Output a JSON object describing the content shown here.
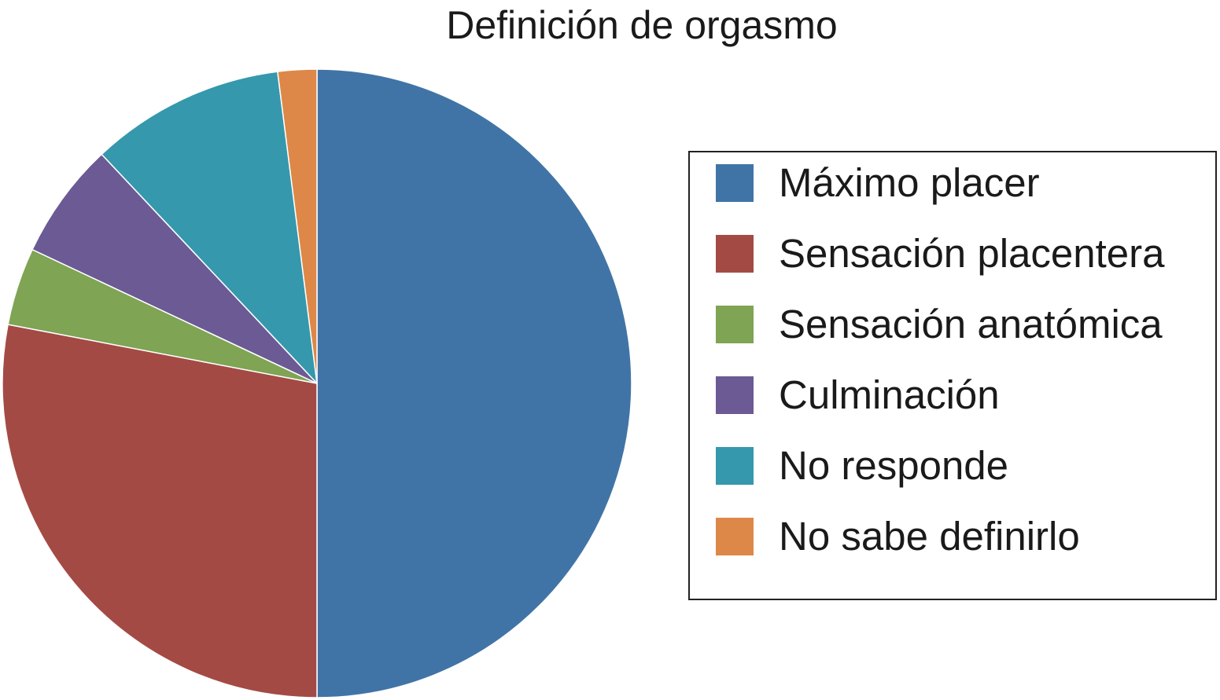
{
  "chart_data": {
    "type": "pie",
    "title": "Definición de orgasmo",
    "legend_position": "right",
    "slices": [
      {
        "label": "Máximo placer",
        "value": 50,
        "color": "#4174a6"
      },
      {
        "label": "Sensación placentera",
        "value": 28,
        "color": "#a44a45"
      },
      {
        "label": "Sensación anatómica",
        "value": 4,
        "color": "#7ea454"
      },
      {
        "label": "Culminación",
        "value": 6,
        "color": "#6b5a94"
      },
      {
        "label": "No responde",
        "value": 10,
        "color": "#3598ad"
      },
      {
        "label": "No sabe definirlo",
        "value": 2,
        "color": "#dd8848"
      }
    ]
  }
}
